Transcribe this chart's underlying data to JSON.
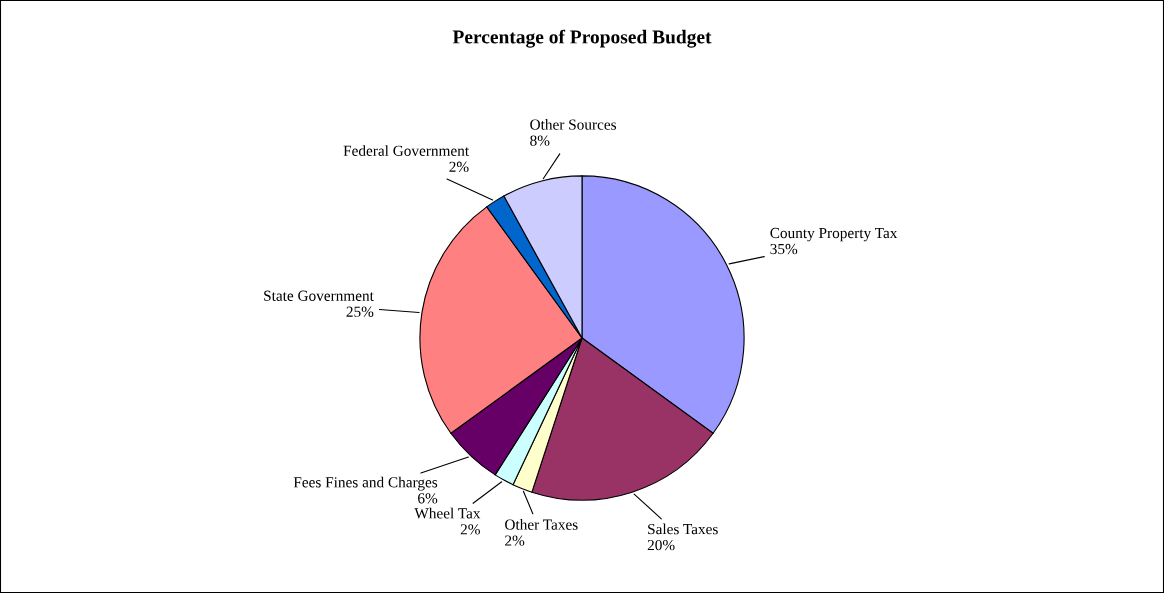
{
  "chart_data": {
    "type": "pie",
    "title": "Percentage of Proposed Budget",
    "categories": [
      "County Property Tax",
      "Sales Taxes",
      "Other Taxes",
      "Wheel Tax",
      "Fees Fines and Charges",
      "State Government",
      "Federal Government",
      "Other Sources"
    ],
    "values": [
      35,
      20,
      2,
      2,
      6,
      25,
      2,
      8
    ],
    "value_labels": [
      "35%",
      "20%",
      "2%",
      "2%",
      "6%",
      "25%",
      "2%",
      "8%"
    ],
    "colors": [
      "#9999ff",
      "#993366",
      "#ffffcc",
      "#ccffff",
      "#660066",
      "#ff8080",
      "#0066cc",
      "#ccccff"
    ]
  }
}
